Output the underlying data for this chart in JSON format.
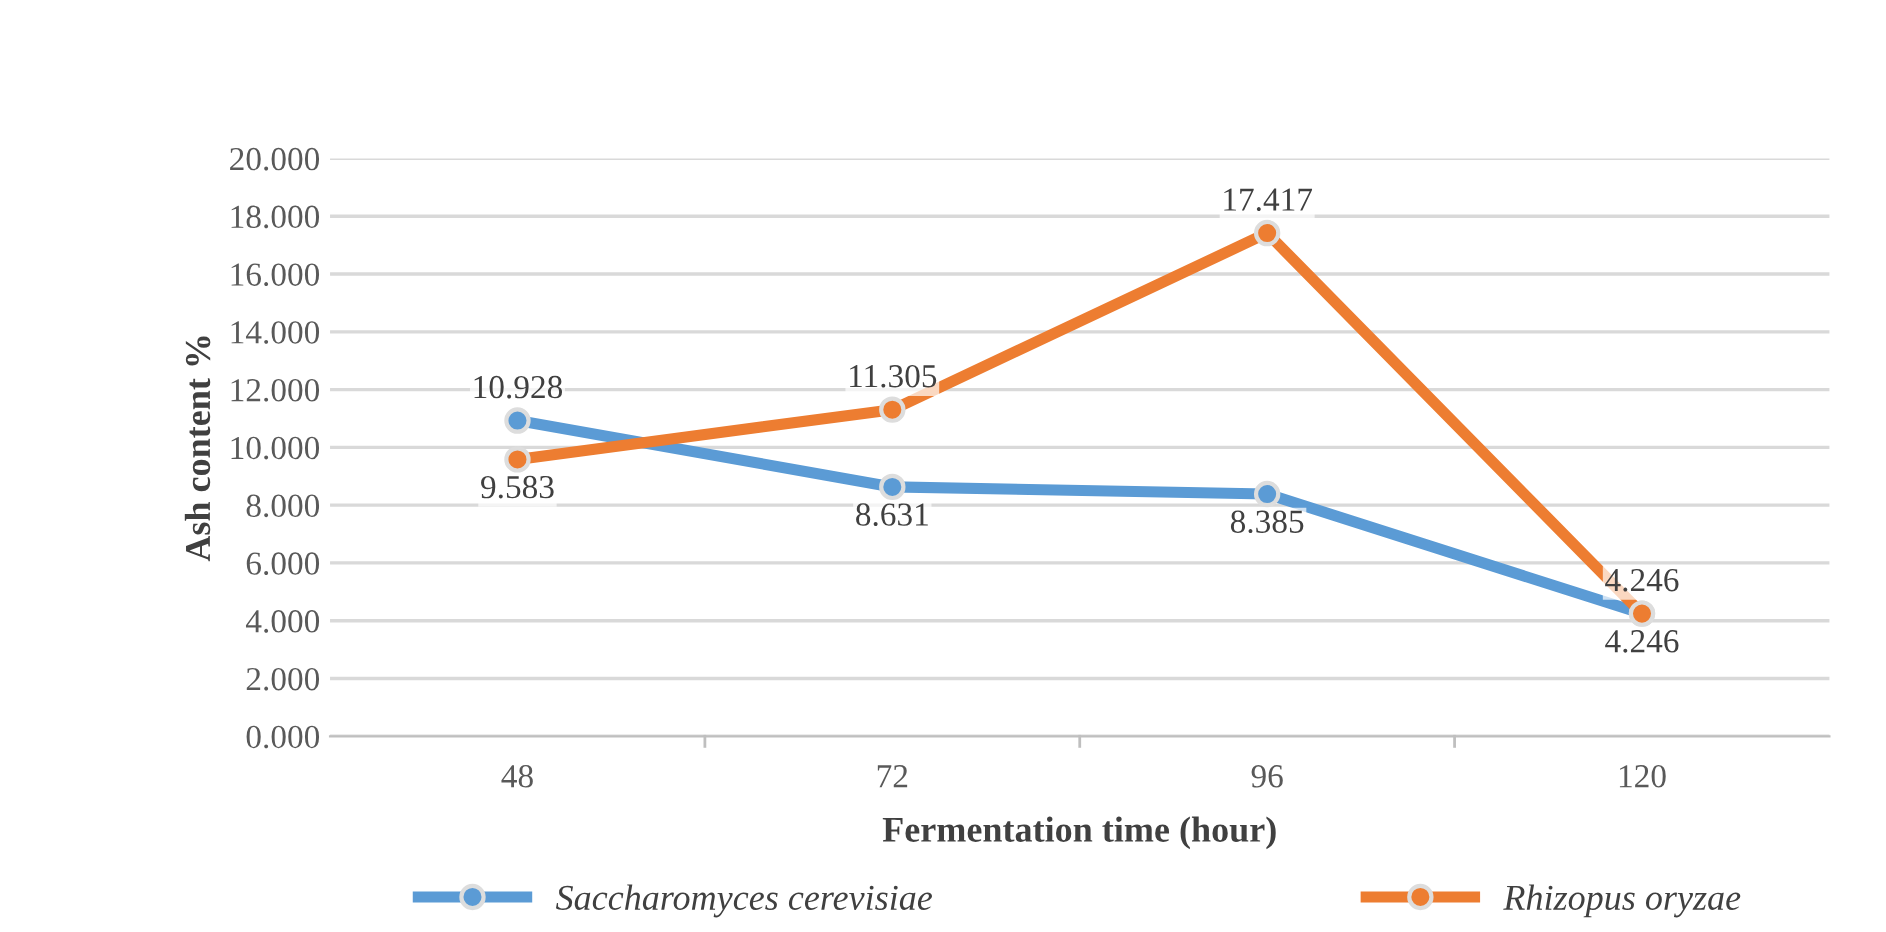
{
  "chart_data": {
    "type": "line",
    "xlabel": "Fermentation time (hour)",
    "ylabel": "Ash content %",
    "categories": [
      "48",
      "72",
      "96",
      "120"
    ],
    "series": [
      {
        "name": "Saccharomyces cerevisiae",
        "color": "#5b9bd5",
        "values": [
          10.928,
          8.631,
          8.385,
          4.246
        ]
      },
      {
        "name": "Rhizopus oryzae",
        "color": "#ed7d31",
        "values": [
          9.583,
          11.305,
          17.417,
          4.246
        ]
      }
    ],
    "ylim": [
      0,
      20
    ],
    "yticks": [
      {
        "value": 0,
        "label": "0.000"
      },
      {
        "value": 2,
        "label": "2.000"
      },
      {
        "value": 4,
        "label": "4.000"
      },
      {
        "value": 6,
        "label": "6.000"
      },
      {
        "value": 8,
        "label": "8.000"
      },
      {
        "value": 10,
        "label": "10.000"
      },
      {
        "value": 12,
        "label": "12.000"
      },
      {
        "value": 14,
        "label": "14.000"
      },
      {
        "value": 16,
        "label": "16.000"
      },
      {
        "value": 18,
        "label": "18.000"
      },
      {
        "value": 20,
        "label": "20.000"
      }
    ],
    "data_labels": true,
    "grid": "y",
    "legend": "bottom",
    "marker": "circle",
    "line_style": "solid"
  }
}
